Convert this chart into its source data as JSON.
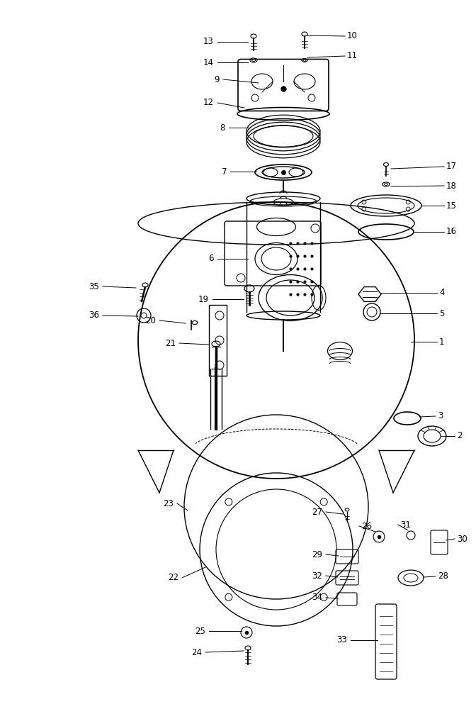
{
  "background_color": "#ffffff",
  "line_color": "#000000",
  "label_color": "#000000",
  "fig_width": 6.72,
  "fig_height": 10.0,
  "dpi": 100,
  "label_fontsize": 8.5
}
